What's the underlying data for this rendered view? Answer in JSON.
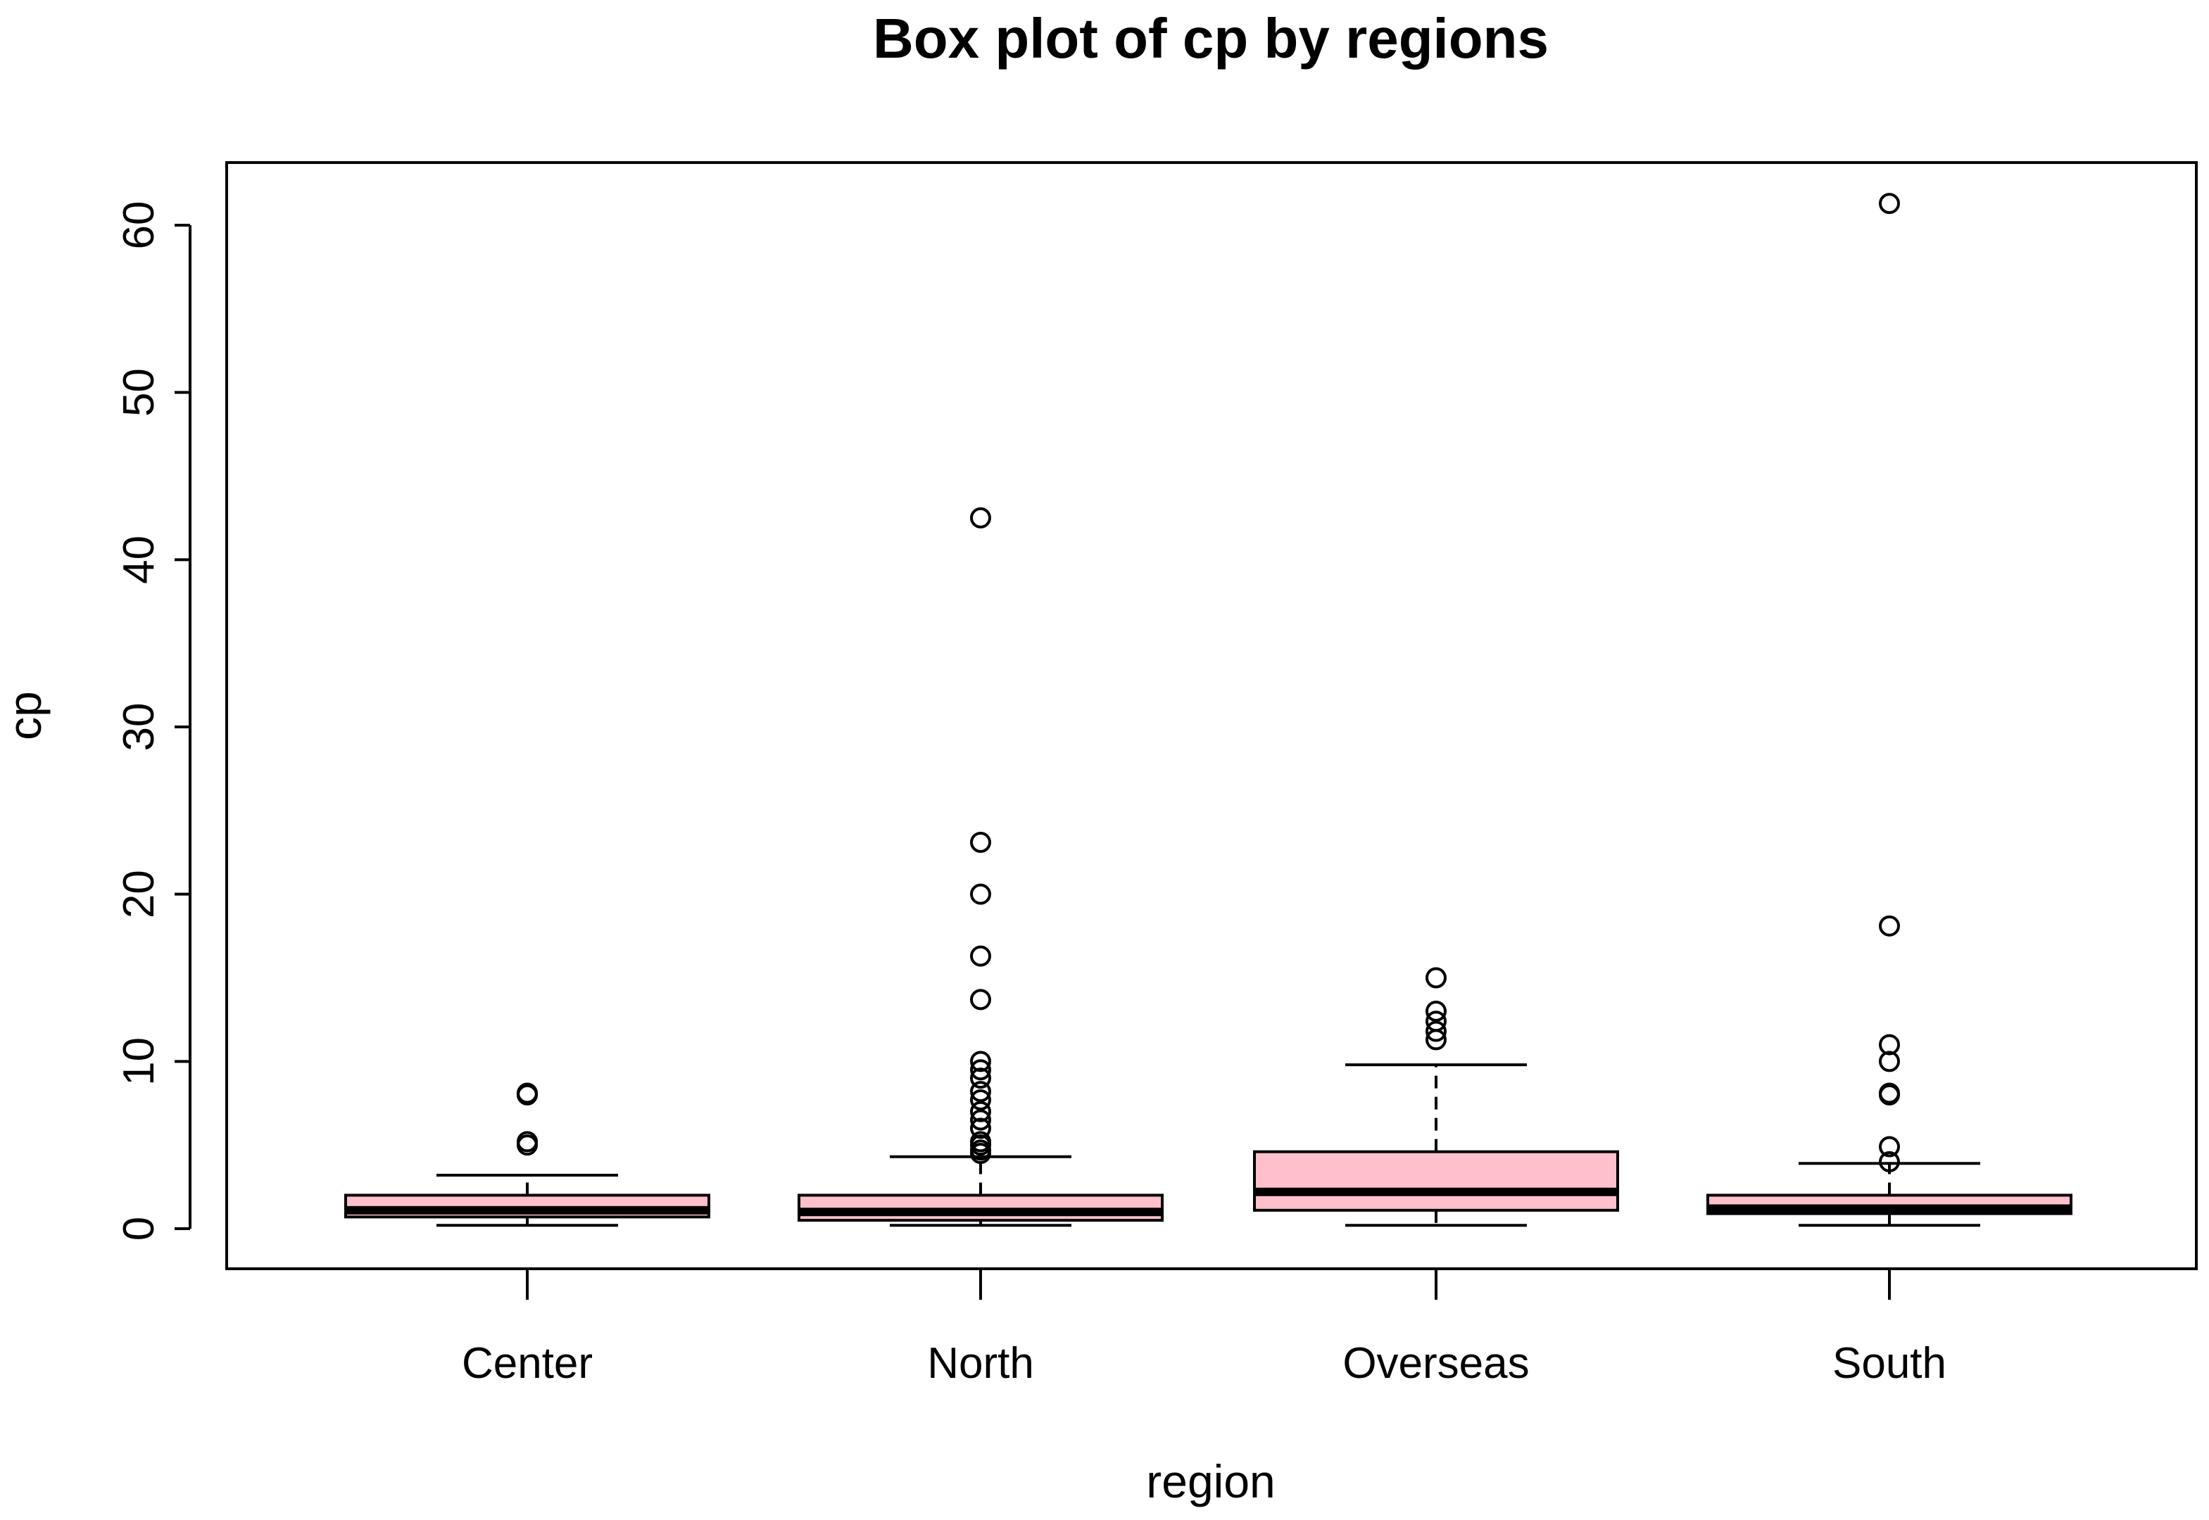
{
  "chart_data": {
    "type": "boxplot",
    "title": "Box plot of cp by regions",
    "xlabel": "region",
    "ylabel": "cp",
    "ylim": [
      -2.5,
      64
    ],
    "yticks": [
      0,
      10,
      20,
      30,
      40,
      50,
      60
    ],
    "fill_color": "#ffc0cb",
    "categories": [
      "Center",
      "North",
      "Overseas",
      "South"
    ],
    "boxes": [
      {
        "name": "Center",
        "min": 0.2,
        "q1": 0.7,
        "median": 1.1,
        "q3": 2.0,
        "max": 3.2,
        "outliers": [
          5.0,
          5.2,
          8.0,
          8.1
        ]
      },
      {
        "name": "North",
        "min": 0.2,
        "q1": 0.5,
        "median": 1.0,
        "q3": 2.0,
        "max": 4.3,
        "outliers": [
          4.5,
          4.7,
          5.0,
          5.2,
          6.0,
          6.5,
          7.0,
          7.7,
          8.2,
          9.0,
          9.5,
          10.0,
          13.7,
          16.3,
          20.0,
          23.1,
          42.5
        ]
      },
      {
        "name": "Overseas",
        "min": 0.2,
        "q1": 1.1,
        "median": 2.2,
        "q3": 4.6,
        "max": 9.8,
        "outliers": [
          11.3,
          11.8,
          12.4,
          13.0,
          15.0
        ]
      },
      {
        "name": "South",
        "min": 0.2,
        "q1": 0.9,
        "median": 1.2,
        "q3": 2.0,
        "max": 3.9,
        "outliers": [
          4.0,
          4.9,
          8.0,
          8.1,
          10.0,
          11.0,
          18.1,
          61.3
        ]
      }
    ]
  }
}
